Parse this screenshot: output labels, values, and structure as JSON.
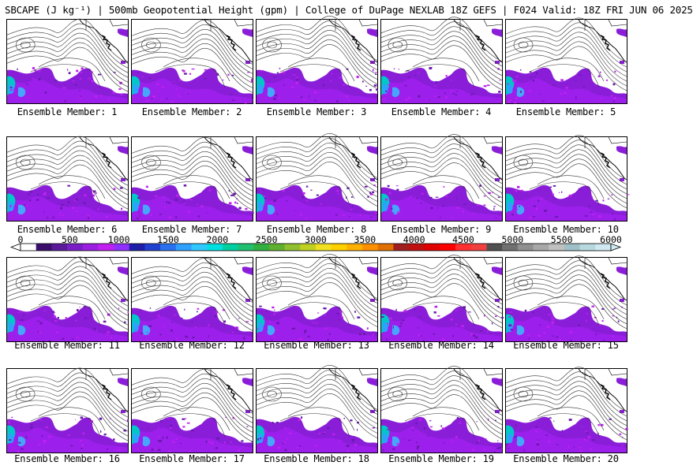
{
  "header": {
    "title": "SBCAPE (J kg⁻¹) | 500mb Geopotential Height (gpm) | College of DuPage NEXLAB 18Z GEFS | F024 Valid: 18Z FRI JUN 06 2025"
  },
  "panels": [
    {
      "label": "Ensemble Member: 1"
    },
    {
      "label": "Ensemble Member: 2"
    },
    {
      "label": "Ensemble Member: 3"
    },
    {
      "label": "Ensemble Member: 4"
    },
    {
      "label": "Ensemble Member: 5"
    },
    {
      "label": "Ensemble Member: 6"
    },
    {
      "label": "Ensemble Member: 7"
    },
    {
      "label": "Ensemble Member: 8"
    },
    {
      "label": "Ensemble Member: 9"
    },
    {
      "label": "Ensemble Member: 10"
    },
    {
      "label": "Ensemble Member: 11"
    },
    {
      "label": "Ensemble Member: 12"
    },
    {
      "label": "Ensemble Member: 13"
    },
    {
      "label": "Ensemble Member: 14"
    },
    {
      "label": "Ensemble Member: 15"
    },
    {
      "label": "Ensemble Member: 16"
    },
    {
      "label": "Ensemble Member: 17"
    },
    {
      "label": "Ensemble Member: 18"
    },
    {
      "label": "Ensemble Member: 19"
    },
    {
      "label": "Ensemble Member: 20"
    }
  ],
  "colorbar": {
    "ticks": [
      "0",
      "500",
      "1000",
      "1500",
      "2000",
      "2500",
      "3000",
      "3500",
      "4000",
      "4500",
      "5000",
      "5500",
      "6000"
    ],
    "min": 0,
    "max": 6000,
    "colors": [
      "#ffffff",
      "#3c0e6b",
      "#5a1a9a",
      "#7a1fc8",
      "#9a1fe0",
      "#c020f0",
      "#9030ff",
      "#1e1eaa",
      "#2040d0",
      "#2a70f0",
      "#30a0ff",
      "#30c8ff",
      "#00e0e0",
      "#00d0a0",
      "#20c070",
      "#30b040",
      "#60b030",
      "#90c030",
      "#c0d020",
      "#f0e020",
      "#ffd000",
      "#ffb000",
      "#ff9000",
      "#e07000",
      "#a02020",
      "#c01010",
      "#e00000",
      "#ff0000",
      "#ff3030",
      "#f04040",
      "#505050",
      "#707070",
      "#909090",
      "#a8a8a8",
      "#c0c0c0",
      "#a0c0c8",
      "#b8d8e0",
      "#d0e8f0"
    ]
  }
}
